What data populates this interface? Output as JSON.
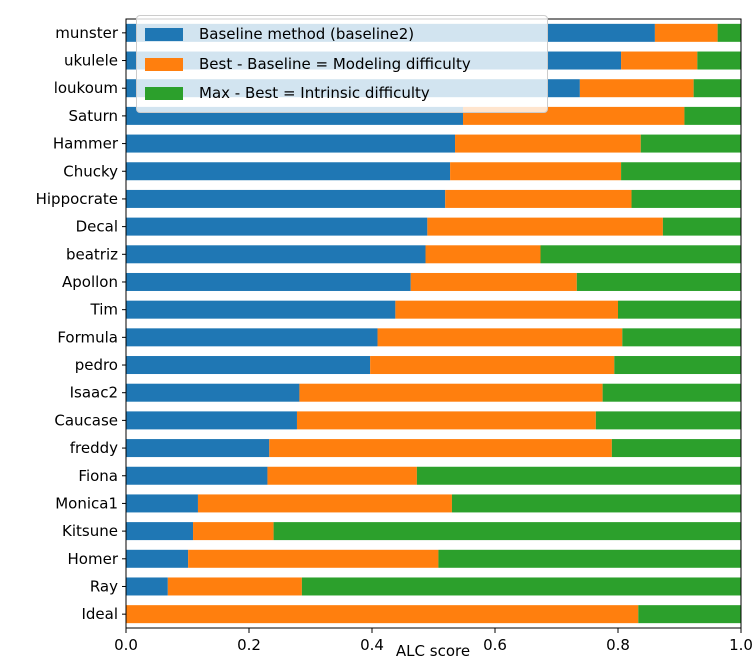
{
  "chart_data": {
    "type": "bar",
    "orientation": "horizontal",
    "stacked": true,
    "xlabel": "ALC score",
    "ylabel": "",
    "xlim": [
      0,
      1
    ],
    "xticks": [
      "0.0",
      "0.2",
      "0.4",
      "0.6",
      "0.8",
      "1.0"
    ],
    "grid": false,
    "legend_position": "top-left",
    "categories": [
      "munster",
      "ukulele",
      "loukoum",
      "Saturn",
      "Hammer",
      "Chucky",
      "Hippocrate",
      "Decal",
      "beatriz",
      "Apollon",
      "Tim",
      "Formula",
      "pedro",
      "Isaac2",
      "Caucase",
      "freddy",
      "Fiona",
      "Monica1",
      "Kitsune",
      "Homer",
      "Ray",
      "Ideal"
    ],
    "series": [
      {
        "name": "Baseline method (baseline2)",
        "color": "#1f77b4",
        "values": [
          0.86,
          0.805,
          0.738,
          0.548,
          0.535,
          0.527,
          0.519,
          0.49,
          0.487,
          0.463,
          0.438,
          0.409,
          0.397,
          0.282,
          0.278,
          0.233,
          0.23,
          0.117,
          0.109,
          0.101,
          0.068,
          0.0
        ]
      },
      {
        "name": "Best - Baseline = Modeling difficulty",
        "color": "#ff7f0e",
        "values": [
          0.102,
          0.124,
          0.185,
          0.36,
          0.302,
          0.278,
          0.303,
          0.383,
          0.187,
          0.27,
          0.362,
          0.398,
          0.397,
          0.493,
          0.486,
          0.557,
          0.243,
          0.413,
          0.131,
          0.407,
          0.218,
          0.833
        ]
      },
      {
        "name": "Max - Best = Intrinsic difficulty",
        "color": "#2ca02c",
        "values": [
          0.038,
          0.071,
          0.077,
          0.092,
          0.163,
          0.195,
          0.178,
          0.127,
          0.326,
          0.267,
          0.2,
          0.193,
          0.206,
          0.225,
          0.236,
          0.21,
          0.527,
          0.47,
          0.76,
          0.492,
          0.714,
          0.167
        ]
      }
    ]
  }
}
